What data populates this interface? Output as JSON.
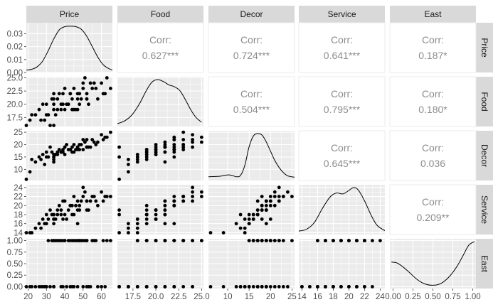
{
  "chart_data": {
    "type": "scatter_matrix",
    "variables": [
      "Price",
      "Food",
      "Decor",
      "Service",
      "East"
    ],
    "panel_bg": "#ebebeb",
    "grid_color": "#ffffff",
    "strip_bg": "#d9d9d9",
    "point_color": "#000000",
    "corr_text_color": "#8c8c8c",
    "ranges": {
      "Price": [
        19,
        66
      ],
      "Food": [
        15.8,
        25.2
      ],
      "Decor": [
        5.5,
        25.6
      ],
      "Service": [
        13.6,
        24.6
      ],
      "East": [
        -0.04,
        1.04
      ]
    },
    "x_ticks": {
      "Price": {
        "values": [
          20,
          30,
          40,
          50,
          60
        ],
        "labels": [
          "20",
          "30",
          "40",
          "50",
          "60"
        ]
      },
      "Food": {
        "values": [
          17.5,
          20,
          22.5,
          25
        ],
        "labels": [
          "17.5",
          "20.0",
          "22.5",
          "25.0"
        ]
      },
      "Decor": {
        "values": [
          10,
          15,
          20,
          25
        ],
        "labels": [
          "10",
          "15",
          "20",
          "25"
        ]
      },
      "Service": {
        "values": [
          14,
          16,
          18,
          20,
          22,
          24
        ],
        "labels": [
          "14",
          "16",
          "18",
          "20",
          "22",
          "24"
        ]
      },
      "East": {
        "values": [
          0,
          0.25,
          0.5,
          0.75,
          1.0
        ],
        "labels": [
          "0.00",
          "0.25",
          "0.50",
          "0.75",
          "1.00"
        ]
      }
    },
    "y_ticks": {
      "Price": {
        "values": [
          0,
          0.01,
          0.02,
          0.03
        ],
        "labels": [
          "0.00",
          "0.01",
          "0.02",
          "0.03"
        ],
        "range": [
          0,
          0.0385
        ]
      },
      "Food": {
        "values": [
          17.5,
          20,
          22.5,
          25
        ],
        "labels": [
          "17.5",
          "20.0",
          "22.5",
          "25.0"
        ]
      },
      "Decor": {
        "values": [
          10,
          15,
          20,
          25
        ],
        "labels": [
          "10",
          "15",
          "20",
          "25"
        ]
      },
      "Service": {
        "values": [
          14,
          16,
          18,
          20,
          22,
          24
        ],
        "labels": [
          "14",
          "16",
          "18",
          "20",
          "22",
          "24"
        ]
      },
      "East": {
        "values": [
          0,
          0.25,
          0.5,
          0.75,
          1.0
        ],
        "labels": [
          "0.00",
          "0.25",
          "0.50",
          "0.75",
          "1.00"
        ]
      }
    },
    "correlations": [
      {
        "row": "Price",
        "col": "Food",
        "label": "Corr:",
        "value": "0.627***"
      },
      {
        "row": "Price",
        "col": "Decor",
        "label": "Corr:",
        "value": "0.724***"
      },
      {
        "row": "Price",
        "col": "Service",
        "label": "Corr:",
        "value": "0.641***"
      },
      {
        "row": "Price",
        "col": "East",
        "label": "Corr:",
        "value": "0.187*"
      },
      {
        "row": "Food",
        "col": "Decor",
        "label": "Corr:",
        "value": "0.504***"
      },
      {
        "row": "Food",
        "col": "Service",
        "label": "Corr:",
        "value": "0.795***"
      },
      {
        "row": "Food",
        "col": "East",
        "label": "Corr:",
        "value": "0.180*"
      },
      {
        "row": "Decor",
        "col": "Service",
        "label": "Corr:",
        "value": "0.645***"
      },
      {
        "row": "Decor",
        "col": "East",
        "label": "Corr:",
        "value": "0.036"
      },
      {
        "row": "Service",
        "col": "East",
        "label": "Corr:",
        "value": "0.209**"
      }
    ],
    "densities": {
      "Price": [
        [
          19,
          0.0018
        ],
        [
          22,
          0.0025
        ],
        [
          25,
          0.0045
        ],
        [
          28,
          0.009
        ],
        [
          31,
          0.017
        ],
        [
          34,
          0.026
        ],
        [
          37,
          0.033
        ],
        [
          40,
          0.0355
        ],
        [
          43,
          0.0358
        ],
        [
          46,
          0.0355
        ],
        [
          49,
          0.0335
        ],
        [
          52,
          0.028
        ],
        [
          55,
          0.02
        ],
        [
          58,
          0.012
        ],
        [
          61,
          0.006
        ],
        [
          64,
          0.003
        ],
        [
          66,
          0.002
        ]
      ],
      "Food": [
        [
          15.8,
          0.03
        ],
        [
          16.6,
          0.09
        ],
        [
          17.4,
          0.22
        ],
        [
          18.2,
          0.45
        ],
        [
          19.0,
          0.75
        ],
        [
          19.6,
          0.92
        ],
        [
          20.2,
          0.97
        ],
        [
          20.8,
          0.93
        ],
        [
          21.4,
          0.86
        ],
        [
          22.0,
          0.82
        ],
        [
          22.6,
          0.74
        ],
        [
          23.2,
          0.55
        ],
        [
          23.8,
          0.33
        ],
        [
          24.4,
          0.16
        ],
        [
          25.0,
          0.06
        ]
      ],
      "Decor": [
        [
          5.5,
          0.05
        ],
        [
          8,
          0.06
        ],
        [
          10,
          0.09
        ],
        [
          11,
          0.08
        ],
        [
          12,
          0.05
        ],
        [
          13,
          0.08
        ],
        [
          14,
          0.3
        ],
        [
          15,
          0.7
        ],
        [
          16,
          0.93
        ],
        [
          17,
          0.98
        ],
        [
          18,
          0.95
        ],
        [
          19,
          0.8
        ],
        [
          20,
          0.6
        ],
        [
          21,
          0.4
        ],
        [
          22,
          0.25
        ],
        [
          23,
          0.14
        ],
        [
          24,
          0.07
        ],
        [
          25.6,
          0.04
        ]
      ],
      "Service": [
        [
          13.6,
          0.04
        ],
        [
          14.6,
          0.08
        ],
        [
          15.6,
          0.22
        ],
        [
          16.6,
          0.5
        ],
        [
          17.6,
          0.74
        ],
        [
          18.4,
          0.82
        ],
        [
          19.2,
          0.8
        ],
        [
          19.8,
          0.85
        ],
        [
          20.6,
          0.93
        ],
        [
          21.2,
          0.88
        ],
        [
          22.0,
          0.66
        ],
        [
          22.8,
          0.38
        ],
        [
          23.6,
          0.16
        ],
        [
          24.6,
          0.05
        ]
      ],
      "East": [
        [
          -0.02,
          0.55
        ],
        [
          0.05,
          0.53
        ],
        [
          0.12,
          0.45
        ],
        [
          0.2,
          0.33
        ],
        [
          0.3,
          0.17
        ],
        [
          0.4,
          0.07
        ],
        [
          0.5,
          0.04
        ],
        [
          0.6,
          0.08
        ],
        [
          0.7,
          0.22
        ],
        [
          0.8,
          0.45
        ],
        [
          0.88,
          0.7
        ],
        [
          0.95,
          0.92
        ],
        [
          1.02,
          1.0
        ]
      ]
    },
    "points": [
      {
        "Price": 43,
        "Food": 22,
        "Decor": 18,
        "Service": 20,
        "East": 0
      },
      {
        "Price": 32,
        "Food": 16,
        "Decor": 19,
        "Service": 19,
        "East": 0
      },
      {
        "Price": 34,
        "Food": 21,
        "Decor": 13,
        "Service": 18,
        "East": 0
      },
      {
        "Price": 41,
        "Food": 20,
        "Decor": 20,
        "Service": 17,
        "East": 0
      },
      {
        "Price": 54,
        "Food": 24,
        "Decor": 19,
        "Service": 21,
        "East": 0
      },
      {
        "Price": 52,
        "Food": 22,
        "Decor": 22,
        "Service": 21,
        "East": 0
      },
      {
        "Price": 34,
        "Food": 16,
        "Decor": 15,
        "Service": 18,
        "East": 0
      },
      {
        "Price": 34,
        "Food": 20,
        "Decor": 16,
        "Service": 17,
        "East": 1
      },
      {
        "Price": 39,
        "Food": 20,
        "Decor": 18,
        "Service": 17,
        "East": 1
      },
      {
        "Price": 44,
        "Food": 19,
        "Decor": 17,
        "Service": 18,
        "East": 1
      },
      {
        "Price": 45,
        "Food": 19,
        "Decor": 17,
        "Service": 18,
        "East": 0
      },
      {
        "Price": 47,
        "Food": 21,
        "Decor": 19,
        "Service": 16,
        "East": 1
      },
      {
        "Price": 52,
        "Food": 21,
        "Decor": 19,
        "Service": 19,
        "East": 1
      },
      {
        "Price": 35,
        "Food": 18,
        "Decor": 16,
        "Service": 17,
        "East": 1
      },
      {
        "Price": 47,
        "Food": 19,
        "Decor": 18,
        "Service": 19,
        "East": 0
      },
      {
        "Price": 47,
        "Food": 22,
        "Decor": 19,
        "Service": 21,
        "East": 1
      },
      {
        "Price": 43,
        "Food": 22,
        "Decor": 18,
        "Service": 20,
        "East": 1
      },
      {
        "Price": 46,
        "Food": 19,
        "Decor": 18,
        "Service": 20,
        "East": 1
      },
      {
        "Price": 40,
        "Food": 19,
        "Decor": 16,
        "Service": 18,
        "East": 1
      },
      {
        "Price": 34,
        "Food": 22,
        "Decor": 15,
        "Service": 16,
        "East": 1
      },
      {
        "Price": 50,
        "Food": 23,
        "Decor": 18,
        "Service": 22,
        "East": 0
      },
      {
        "Price": 38,
        "Food": 20,
        "Decor": 17,
        "Service": 19,
        "East": 1
      },
      {
        "Price": 34,
        "Food": 19,
        "Decor": 14,
        "Service": 17,
        "East": 0
      },
      {
        "Price": 48,
        "Food": 22,
        "Decor": 20,
        "Service": 20,
        "East": 1
      },
      {
        "Price": 52,
        "Food": 21,
        "Decor": 19,
        "Service": 21,
        "East": 1
      },
      {
        "Price": 30,
        "Food": 18,
        "Decor": 15,
        "Service": 16,
        "East": 0
      },
      {
        "Price": 29,
        "Food": 17,
        "Decor": 12,
        "Service": 16,
        "East": 0
      },
      {
        "Price": 36,
        "Food": 21,
        "Decor": 17,
        "Service": 19,
        "East": 1
      },
      {
        "Price": 56,
        "Food": 24,
        "Decor": 21,
        "Service": 22,
        "East": 1
      },
      {
        "Price": 63,
        "Food": 25,
        "Decor": 23,
        "Service": 22,
        "East": 1
      },
      {
        "Price": 65,
        "Food": 23,
        "Decor": 25,
        "Service": 22,
        "East": 1
      },
      {
        "Price": 60,
        "Food": 24,
        "Decor": 24,
        "Service": 23,
        "East": 0
      },
      {
        "Price": 55,
        "Food": 23,
        "Decor": 22,
        "Service": 22,
        "East": 1
      },
      {
        "Price": 57,
        "Food": 23,
        "Decor": 20,
        "Service": 21,
        "East": 1
      },
      {
        "Price": 49,
        "Food": 21,
        "Decor": 20,
        "Service": 21,
        "East": 1
      },
      {
        "Price": 44,
        "Food": 21,
        "Decor": 19,
        "Service": 20,
        "East": 0
      },
      {
        "Price": 42,
        "Food": 20,
        "Decor": 18,
        "Service": 19,
        "East": 1
      },
      {
        "Price": 38,
        "Food": 19,
        "Decor": 17,
        "Service": 18,
        "East": 0
      },
      {
        "Price": 31,
        "Food": 18,
        "Decor": 15,
        "Service": 17,
        "East": 1
      },
      {
        "Price": 27,
        "Food": 17,
        "Decor": 14,
        "Service": 15,
        "East": 0
      },
      {
        "Price": 24,
        "Food": 18,
        "Decor": 13,
        "Service": 15,
        "East": 0
      },
      {
        "Price": 22,
        "Food": 18,
        "Decor": 14,
        "Service": 14,
        "East": 0
      },
      {
        "Price": 19,
        "Food": 16,
        "Decor": 6,
        "Service": 14,
        "East": 0
      },
      {
        "Price": 21,
        "Food": 17,
        "Decor": 9,
        "Service": 14,
        "East": 0
      },
      {
        "Price": 26,
        "Food": 19,
        "Decor": 15,
        "Service": 16,
        "East": 0
      },
      {
        "Price": 28,
        "Food": 20,
        "Decor": 16,
        "Service": 17,
        "East": 0
      },
      {
        "Price": 33,
        "Food": 21,
        "Decor": 17,
        "Service": 18,
        "East": 1
      },
      {
        "Price": 37,
        "Food": 22,
        "Decor": 18,
        "Service": 20,
        "East": 1
      },
      {
        "Price": 51,
        "Food": 25,
        "Decor": 21,
        "Service": 23,
        "East": 1
      },
      {
        "Price": 58,
        "Food": 21,
        "Decor": 21,
        "Service": 20,
        "East": 0
      },
      {
        "Price": 61,
        "Food": 22,
        "Decor": 22,
        "Service": 21,
        "East": 1
      },
      {
        "Price": 53,
        "Food": 20,
        "Decor": 19,
        "Service": 19,
        "East": 0
      },
      {
        "Price": 45,
        "Food": 23,
        "Decor": 20,
        "Service": 22,
        "East": 1
      },
      {
        "Price": 40,
        "Food": 23,
        "Decor": 19,
        "Service": 21,
        "East": 1
      },
      {
        "Price": 36,
        "Food": 19,
        "Decor": 16,
        "Service": 18,
        "East": 1
      },
      {
        "Price": 30,
        "Food": 20,
        "Decor": 17,
        "Service": 18,
        "East": 0
      },
      {
        "Price": 48,
        "Food": 20,
        "Decor": 18,
        "Service": 19,
        "East": 1
      },
      {
        "Price": 50,
        "Food": 24,
        "Decor": 22,
        "Service": 24,
        "East": 1
      },
      {
        "Price": 62,
        "Food": 22,
        "Decor": 23,
        "Service": 22,
        "East": 0
      },
      {
        "Price": 39,
        "Food": 22,
        "Decor": 17,
        "Service": 21,
        "East": 0
      }
    ]
  }
}
